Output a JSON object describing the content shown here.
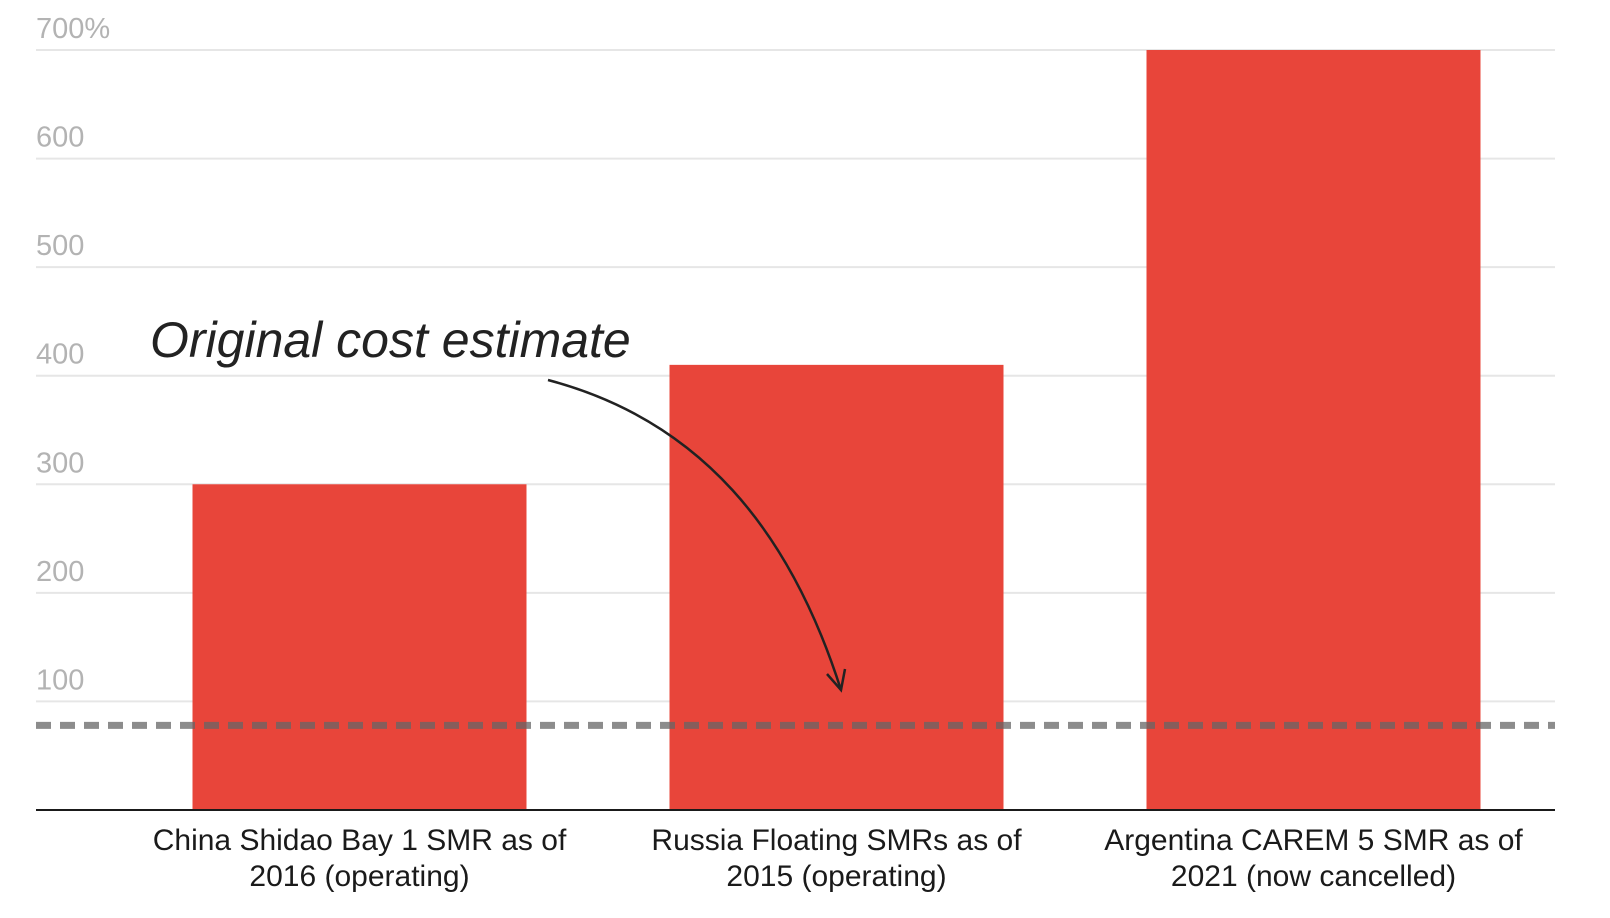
{
  "chart_data": {
    "type": "bar",
    "categories": [
      [
        "China Shidao Bay 1 SMR as of",
        "2016 (operating)"
      ],
      [
        "Russia Floating SMRs as of",
        "2015 (operating)"
      ],
      [
        "Argentina CAREM 5 SMR as of",
        "2021 (now cancelled)"
      ]
    ],
    "values": [
      300,
      410,
      700
    ],
    "ylim": [
      0,
      700
    ],
    "yticks": [
      {
        "value": 100,
        "label": "100"
      },
      {
        "value": 200,
        "label": "200"
      },
      {
        "value": 300,
        "label": "300"
      },
      {
        "value": 400,
        "label": "400"
      },
      {
        "value": 500,
        "label": "500"
      },
      {
        "value": 600,
        "label": "600"
      },
      {
        "value": 700,
        "label": "700%"
      }
    ],
    "grid": true,
    "reference_line": {
      "value": 100,
      "style": "dashed"
    },
    "annotation": {
      "text": "Original cost estimate",
      "points_to": 100
    },
    "colors": {
      "bar": "#e8453a",
      "grid": "#e6e6e6",
      "tick": "#b3b3b3",
      "reference": "#666666",
      "baseline": "#1a1a1a"
    }
  }
}
